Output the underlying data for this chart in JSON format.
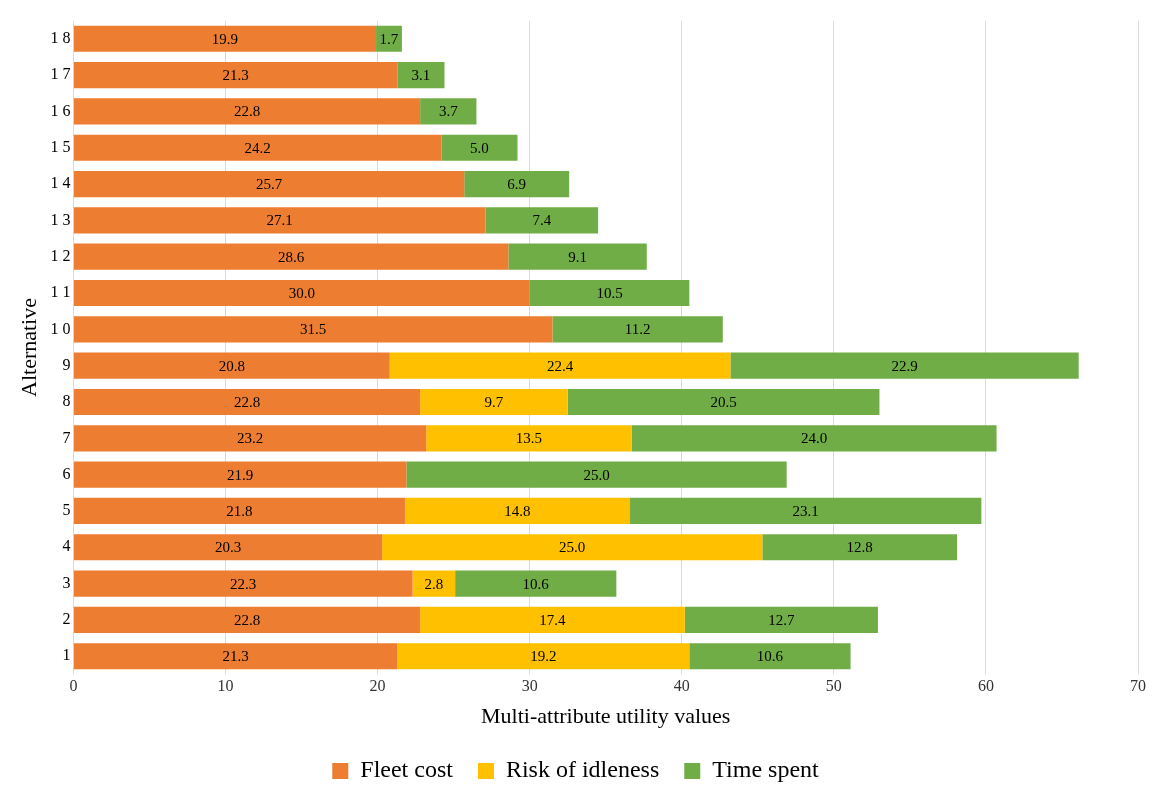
{
  "chart_data": {
    "type": "bar",
    "orientation": "horizontal",
    "stacked": true,
    "xlabel": "Multi-attribute utility values",
    "ylabel": "Alternative",
    "categories": [
      "1 8",
      "1 7",
      "1 6",
      "1 5",
      "1 4",
      "1 3",
      "1 2",
      "1 1",
      "1 0",
      "9",
      "8",
      "7",
      "6",
      "5",
      "4",
      "3",
      "2",
      "1"
    ],
    "series": [
      {
        "name": "Fleet cost",
        "color": "#ed7d31",
        "values": [
          19.9,
          21.3,
          22.8,
          24.2,
          25.7,
          27.1,
          28.6,
          30.0,
          31.5,
          20.8,
          22.8,
          23.2,
          21.9,
          21.8,
          20.3,
          22.3,
          22.8,
          21.3
        ],
        "value_labels": [
          "19.9",
          "21.3",
          "22.8",
          "24.2",
          "25.7",
          "27.1",
          "28.6",
          "30.0",
          "31.5",
          "20.8",
          "22.8",
          "23.2",
          "21.9",
          "21.8",
          "20.3",
          "22.3",
          "22.8",
          "21.3"
        ]
      },
      {
        "name": "Risk of idleness",
        "color": "#ffc000",
        "values": [
          null,
          null,
          null,
          null,
          null,
          null,
          null,
          null,
          null,
          22.4,
          9.7,
          13.5,
          null,
          14.8,
          25.0,
          2.8,
          17.4,
          19.2
        ],
        "value_labels": [
          null,
          null,
          null,
          null,
          null,
          null,
          null,
          null,
          null,
          "22.4",
          "9.7",
          "13.5",
          null,
          "14.8",
          "25.0",
          "2.8",
          "17.4",
          "19.2"
        ]
      },
      {
        "name": "Time spent",
        "color": "#70ad47",
        "values": [
          1.7,
          3.1,
          3.7,
          5.0,
          6.9,
          7.4,
          9.1,
          10.5,
          11.2,
          22.9,
          20.5,
          24.0,
          25.0,
          23.1,
          12.8,
          10.6,
          12.7,
          10.6
        ],
        "value_labels": [
          "1.7",
          "3.1",
          "3.7",
          "5.0",
          "6.9",
          "7.4",
          "9.1",
          "10.5",
          "11.2",
          "22.9",
          "20.5",
          "24.0",
          "25.0",
          "23.1",
          "12.8",
          "10.6",
          "12.7",
          "10.6"
        ]
      }
    ],
    "xlim": [
      0,
      70
    ],
    "xticks": [
      0,
      10,
      20,
      30,
      40,
      50,
      60,
      70
    ],
    "grid": "x",
    "legend": "bottom"
  }
}
